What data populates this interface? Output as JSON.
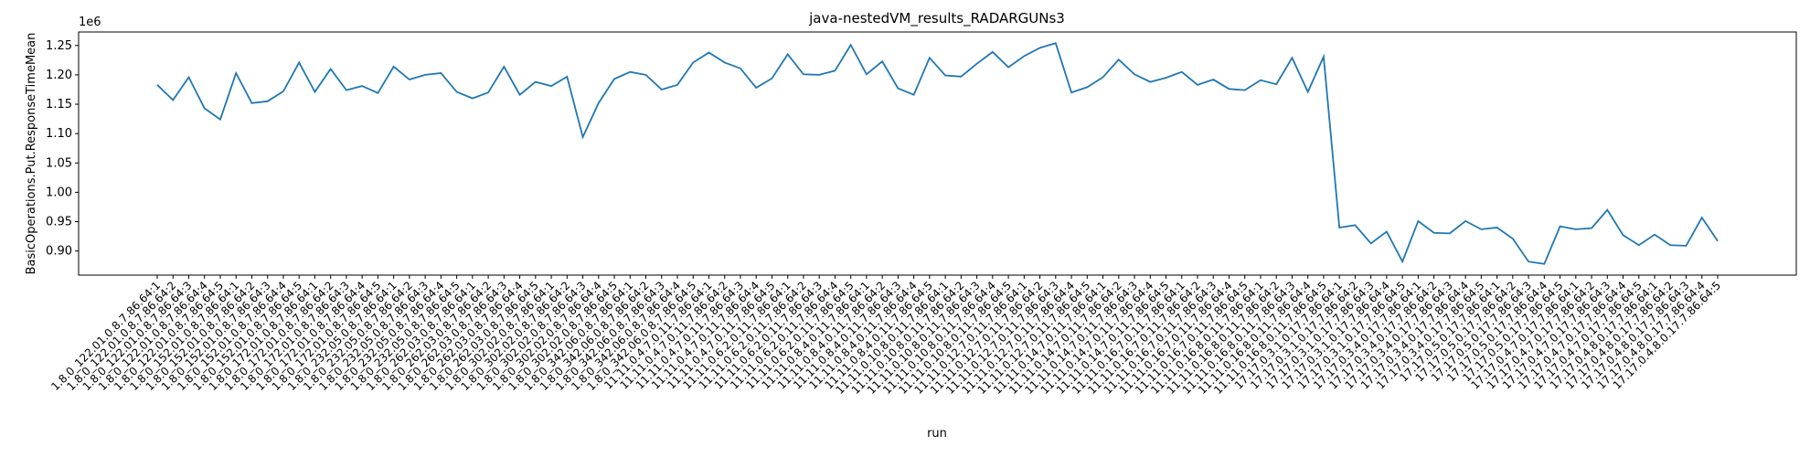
{
  "chart_data": {
    "type": "line",
    "title": "java-nestedVM_results_RADARGUNs3",
    "xlabel": "run",
    "ylabel": "BasicOperations.Put.ResponseTimeMean",
    "offset_text": "1e6",
    "categories": [
      "1.8.0_122.01.0.8.7.86.64:1",
      "1.8.0_122.01.0.8.7.86.64:2",
      "1.8.0_122.01.0.8.7.86.64:3",
      "1.8.0_122.01.0.8.7.86.64:4",
      "1.8.0_122.01.0.8.7.86.64:5",
      "1.8.0_152.01.0.8.7.86.64:1",
      "1.8.0_152.01.0.8.7.86.64:2",
      "1.8.0_152.01.0.8.7.86.64:3",
      "1.8.0_152.01.0.8.7.86.64:4",
      "1.8.0_152.01.0.8.7.86.64:5",
      "1.8.0_172.01.0.8.7.86.64:1",
      "1.8.0_172.01.0.8.7.86.64:2",
      "1.8.0_172.01.0.8.7.86.64:3",
      "1.8.0_172.01.0.8.7.86.64:4",
      "1.8.0_172.01.0.8.7.86.64:5",
      "1.8.0_232.05.0.8.7.86.64:1",
      "1.8.0_232.05.0.8.7.86.64:2",
      "1.8.0_232.05.0.8.7.86.64:3",
      "1.8.0_232.05.0.8.7.86.64:4",
      "1.8.0_232.05.0.8.7.86.64:5",
      "1.8.0_262.03.0.8.7.86.64:1",
      "1.8.0_262.03.0.8.7.86.64:2",
      "1.8.0_262.03.0.8.7.86.64:3",
      "1.8.0_262.03.0.8.7.86.64:4",
      "1.8.0_262.03.0.8.7.86.64:5",
      "1.8.0_302.02.0.8.7.86.64:1",
      "1.8.0_302.02.0.8.7.86.64:2",
      "1.8.0_302.02.0.8.7.86.64:3",
      "1.8.0_302.02.0.8.7.86.64:4",
      "1.8.0_302.02.0.8.7.86.64:5",
      "1.8.0_342.06.0.8.7.86.64:1",
      "1.8.0_342.06.0.8.7.86.64:2",
      "1.8.0_342.06.0.8.7.86.64:3",
      "1.8.0_342.06.0.8.7.86.64:4",
      "1.8.0_342.06.0.8.7.86.64:5",
      "11.11.0.4.7.0.11.7.86.64:1",
      "11.11.0.4.7.0.11.7.86.64:2",
      "11.11.0.4.7.0.11.7.86.64:3",
      "11.11.0.4.7.0.11.7.86.64:4",
      "11.11.0.4.7.0.11.7.86.64:5",
      "11.11.0.6.2.0.11.7.86.64:1",
      "11.11.0.6.2.0.11.7.86.64:2",
      "11.11.0.6.2.0.11.7.86.64:3",
      "11.11.0.6.2.0.11.7.86.64:4",
      "11.11.0.6.2.0.11.7.86.64:5",
      "11.11.0.8.4.0.11.7.86.64:1",
      "11.11.0.8.4.0.11.7.86.64:2",
      "11.11.0.8.4.0.11.7.86.64:3",
      "11.11.0.8.4.0.11.7.86.64:4",
      "11.11.0.8.4.0.11.7.86.64:5",
      "11.11.0.10.8.0.11.7.86.64:1",
      "11.11.0.10.8.0.11.7.86.64:2",
      "11.11.0.10.8.0.11.7.86.64:3",
      "11.11.0.10.8.0.11.7.86.64:4",
      "11.11.0.10.8.0.11.7.86.64:5",
      "11.11.0.12.7.0.11.7.86.64:1",
      "11.11.0.12.7.0.11.7.86.64:2",
      "11.11.0.12.7.0.11.7.86.64:3",
      "11.11.0.12.7.0.11.7.86.64:4",
      "11.11.0.12.7.0.11.7.86.64:5",
      "11.11.0.14.7.0.11.7.86.64:1",
      "11.11.0.14.7.0.11.7.86.64:2",
      "11.11.0.14.7.0.11.7.86.64:3",
      "11.11.0.14.7.0.11.7.86.64:4",
      "11.11.0.14.7.0.11.7.86.64:5",
      "11.11.0.16.7.0.11.7.86.64:1",
      "11.11.0.16.7.0.11.7.86.64:2",
      "11.11.0.16.7.0.11.7.86.64:3",
      "11.11.0.16.7.0.11.7.86.64:4",
      "11.11.0.16.7.0.11.7.86.64:5",
      "11.11.0.16.8.0.11.7.86.64:1",
      "11.11.0.16.8.0.11.7.86.64:2",
      "11.11.0.16.8.0.11.7.86.64:3",
      "11.11.0.16.8.0.11.7.86.64:4",
      "11.11.0.16.8.0.11.7.86.64:5",
      "17.17.0.3.1.0.17.7.86.64:1",
      "17.17.0.3.1.0.17.7.86.64:2",
      "17.17.0.3.1.0.17.7.86.64:3",
      "17.17.0.3.1.0.17.7.86.64:4",
      "17.17.0.3.1.0.17.7.86.64:5",
      "17.17.0.3.4.0.17.7.86.64:1",
      "17.17.0.3.4.0.17.7.86.64:2",
      "17.17.0.3.4.0.17.7.86.64:3",
      "17.17.0.3.4.0.17.7.86.64:4",
      "17.17.0.3.4.0.17.7.86.64:5",
      "17.17.0.5.0.17.7.86.64:1",
      "17.17.0.5.0.17.7.86.64:2",
      "17.17.0.5.0.17.7.86.64:3",
      "17.17.0.5.0.17.7.86.64:4",
      "17.17.0.5.0.17.7.86.64:5",
      "17.17.0.4.7.0.17.7.86.64:1",
      "17.17.0.4.7.0.17.7.86.64:2",
      "17.17.0.4.7.0.17.7.86.64:3",
      "17.17.0.4.7.0.17.7.86.64:4",
      "17.17.0.4.7.0.17.7.86.64:5",
      "17.17.0.4.8.0.17.7.86.64:1",
      "17.17.0.4.8.0.17.7.86.64:2",
      "17.17.0.4.8.0.17.7.86.64:3",
      "17.17.0.4.8.0.17.7.86.64:4",
      "17.17.0.4.8.0.17.7.86.64:5"
    ],
    "series": [
      {
        "name": "BasicOperations.Put.ResponseTimeMean",
        "color": "#1f77b4",
        "values": [
          1183000,
          1157000,
          1196000,
          1143000,
          1124000,
          1203000,
          1152000,
          1155000,
          1172000,
          1221000,
          1171000,
          1210000,
          1174000,
          1181000,
          1169000,
          1214000,
          1192000,
          1200000,
          1203000,
          1171000,
          1160000,
          1170000,
          1214000,
          1166000,
          1188000,
          1181000,
          1197000,
          1094000,
          1152000,
          1193000,
          1205000,
          1200000,
          1175000,
          1183000,
          1221000,
          1238000,
          1221000,
          1211000,
          1178000,
          1194000,
          1235000,
          1201000,
          1200000,
          1207000,
          1251000,
          1201000,
          1223000,
          1177000,
          1166000,
          1229000,
          1199000,
          1197000,
          1219000,
          1239000,
          1213000,
          1232000,
          1246000,
          1254000,
          1170000,
          1179000,
          1196000,
          1226000,
          1201000,
          1188000,
          1195000,
          1205000,
          1183000,
          1192000,
          1176000,
          1174000,
          1191000,
          1184000,
          1229000,
          1171000,
          1231000,
          940000,
          944000,
          913000,
          933000,
          882000,
          951000,
          931000,
          930000,
          951000,
          937000,
          940000,
          921000,
          882000,
          878000,
          942000,
          937000,
          939000,
          970000,
          927000,
          910000,
          928000,
          910000,
          909000,
          957000,
          917000
        ]
      }
    ],
    "ylim": [
      859000,
      1273000
    ],
    "yticks": [
      {
        "value": 900000,
        "label": "0.90"
      },
      {
        "value": 950000,
        "label": "0.95"
      },
      {
        "value": 1000000,
        "label": "1.00"
      },
      {
        "value": 1050000,
        "label": "1.05"
      },
      {
        "value": 1100000,
        "label": "1.10"
      },
      {
        "value": 1150000,
        "label": "1.15"
      },
      {
        "value": 1200000,
        "label": "1.20"
      },
      {
        "value": 1250000,
        "label": "1.25"
      }
    ]
  }
}
